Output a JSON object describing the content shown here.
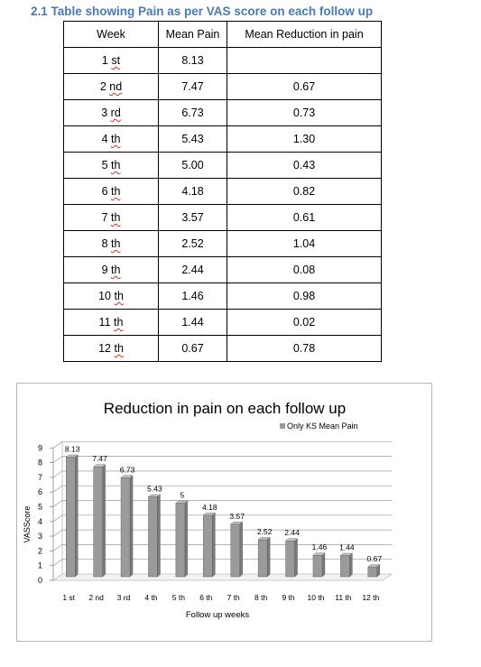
{
  "heading": "2.1 Table showing Pain as per VAS score on each follow up",
  "table": {
    "headers": [
      "Week",
      "Mean Pain",
      "Mean Reduction in pain"
    ],
    "rows": [
      {
        "num": "1",
        "suffix": "st",
        "pain": "8.13",
        "reduction": ""
      },
      {
        "num": "2",
        "suffix": "nd",
        "pain": "7.47",
        "reduction": "0.67"
      },
      {
        "num": "3",
        "suffix": "rd",
        "pain": "6.73",
        "reduction": "0.73"
      },
      {
        "num": "4",
        "suffix": "th",
        "pain": "5.43",
        "reduction": "1.30"
      },
      {
        "num": "5",
        "suffix": "th",
        "pain": "5.00",
        "reduction": "0.43"
      },
      {
        "num": "6",
        "suffix": "th",
        "pain": "4.18",
        "reduction": "0.82"
      },
      {
        "num": "7",
        "suffix": "th",
        "pain": "3.57",
        "reduction": "0.61"
      },
      {
        "num": "8",
        "suffix": "th",
        "pain": "2.52",
        "reduction": "1.04"
      },
      {
        "num": "9",
        "suffix": "th",
        "pain": "2.44",
        "reduction": "0.08"
      },
      {
        "num": "10",
        "suffix": "th",
        "pain": "1.46",
        "reduction": "0.98"
      },
      {
        "num": "11",
        "suffix": "th",
        "pain": "1.44",
        "reduction": "0.02"
      },
      {
        "num": "12",
        "suffix": "th",
        "pain": "0.67",
        "reduction": "0.78"
      }
    ]
  },
  "chart_data": {
    "type": "bar",
    "title": "Reduction in pain on each follow up",
    "xlabel": "Follow up weeks",
    "ylabel": "VASScore",
    "ylim": [
      0,
      9
    ],
    "yticks": [
      0,
      1,
      2,
      3,
      4,
      5,
      6,
      7,
      8,
      9
    ],
    "grid": true,
    "legend_position": "top-right",
    "bar_color": "#9a9a9a",
    "categories": [
      "1 st",
      "2 nd",
      "3 rd",
      "4 th",
      "5 th",
      "6 th",
      "7 th",
      "8 th",
      "9 th",
      "10 th",
      "11 th",
      "12 th"
    ],
    "series": [
      {
        "name": "Only KS Mean Pain",
        "values": [
          8.13,
          7.47,
          6.73,
          5.43,
          5,
          4.18,
          3.57,
          2.52,
          2.44,
          1.46,
          1.44,
          0.67
        ],
        "labels": [
          "8.13",
          "7.47",
          "6.73",
          "5.43",
          "5",
          "4.18",
          "3.57",
          "2.52",
          "2.44",
          "1.46",
          "1.44",
          "0.67"
        ]
      }
    ]
  }
}
